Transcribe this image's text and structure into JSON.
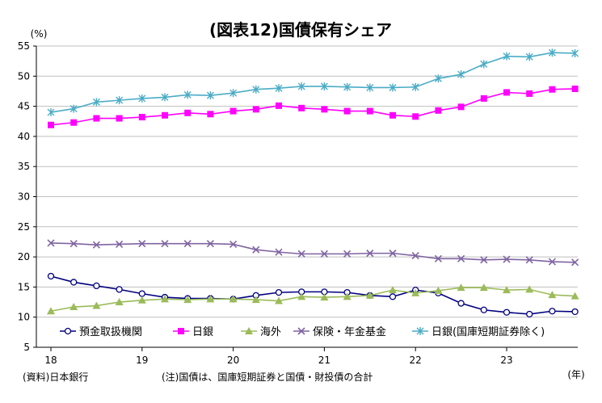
{
  "chart_data": {
    "type": "line",
    "title": "(図表12)国債保有シェア",
    "y_unit": "(%)",
    "x_unit": "(年)",
    "ylim": [
      5,
      55
    ],
    "y_ticks": [
      "5",
      "10",
      "15",
      "20",
      "25",
      "30",
      "35",
      "40",
      "45",
      "50",
      "55"
    ],
    "x_tick_labels": [
      "18",
      "19",
      "20",
      "21",
      "22",
      "23"
    ],
    "x_tick_quarter_index": [
      0,
      4,
      8,
      12,
      16,
      20
    ],
    "grid": "horizontal",
    "legend_position": "bottom-inside",
    "categories": [
      "2018Q1",
      "2018Q2",
      "2018Q3",
      "2018Q4",
      "2019Q1",
      "2019Q2",
      "2019Q3",
      "2019Q4",
      "2020Q1",
      "2020Q2",
      "2020Q3",
      "2020Q4",
      "2021Q1",
      "2021Q2",
      "2021Q3",
      "2021Q4",
      "2022Q1",
      "2022Q2",
      "2022Q3",
      "2022Q4",
      "2023Q1",
      "2023Q2",
      "2023Q3",
      "2023Q4"
    ],
    "series": [
      {
        "name": "預金取扱機関",
        "color": "#000080",
        "marker": "circle",
        "values": [
          16.8,
          15.8,
          15.2,
          14.6,
          13.9,
          13.3,
          13.1,
          13.1,
          13.0,
          13.6,
          14.1,
          14.2,
          14.2,
          14.1,
          13.6,
          13.4,
          14.5,
          14.0,
          12.3,
          11.2,
          10.8,
          10.5,
          11.0,
          10.9
        ]
      },
      {
        "name": "日銀",
        "color": "#ff00ff",
        "marker": "square",
        "values": [
          41.9,
          42.3,
          43.0,
          43.0,
          43.2,
          43.5,
          43.9,
          43.7,
          44.2,
          44.5,
          45.1,
          44.7,
          44.5,
          44.2,
          44.2,
          43.5,
          43.3,
          44.3,
          44.9,
          46.3,
          47.3,
          47.1,
          47.8,
          47.9
        ]
      },
      {
        "name": "海外",
        "color": "#9bbb59",
        "marker": "triangle",
        "values": [
          11.0,
          11.7,
          11.9,
          12.5,
          12.8,
          13.0,
          12.9,
          13.0,
          13.0,
          12.9,
          12.7,
          13.4,
          13.3,
          13.4,
          13.6,
          14.5,
          14.0,
          14.4,
          14.9,
          14.9,
          14.5,
          14.6,
          13.7,
          13.5
        ]
      },
      {
        "name": "保険・年金基金",
        "color": "#7f64a2",
        "marker": "x",
        "values": [
          22.3,
          22.2,
          22.0,
          22.1,
          22.2,
          22.2,
          22.2,
          22.2,
          22.1,
          21.2,
          20.8,
          20.5,
          20.5,
          20.5,
          20.6,
          20.6,
          20.2,
          19.7,
          19.7,
          19.5,
          19.6,
          19.5,
          19.2,
          19.1
        ]
      },
      {
        "name": "日銀(国庫短期証券除く)",
        "color": "#4bacc6",
        "marker": "asterisk",
        "values": [
          44.0,
          44.6,
          45.7,
          46.0,
          46.3,
          46.5,
          46.9,
          46.8,
          47.2,
          47.8,
          48.0,
          48.3,
          48.3,
          48.2,
          48.1,
          48.1,
          48.2,
          49.6,
          50.3,
          52.0,
          53.3,
          53.2,
          53.9,
          53.8
        ]
      }
    ]
  },
  "notes": {
    "source": "(資料)日本銀行",
    "note": "(注)国債は、国庫短期証券と国債・財投債の合計"
  }
}
